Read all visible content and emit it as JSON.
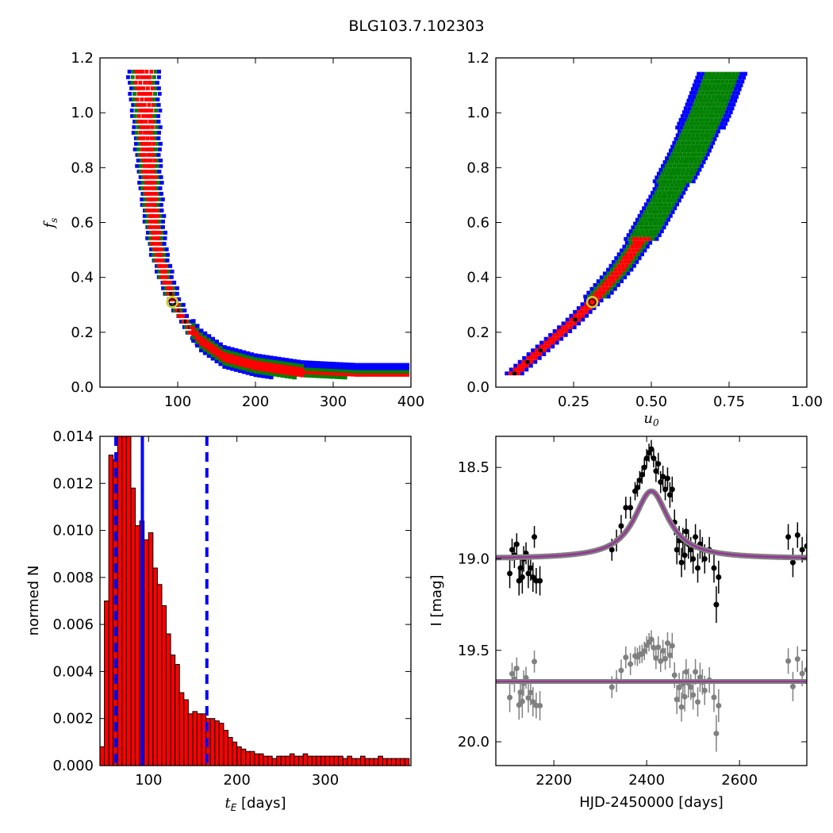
{
  "figure": {
    "title": "BLG103.7.102303"
  },
  "chart_data": [
    {
      "id": "fs_vs_tE",
      "type": "heatmap",
      "xlabel": "",
      "ylabel": "f_s",
      "xlim": [
        0,
        400
      ],
      "ylim": [
        0,
        1.2
      ],
      "xticks": [
        "100",
        "200",
        "300",
        "400"
      ],
      "yticks": [
        "0.0",
        "0.2",
        "0.4",
        "0.6",
        "0.8",
        "1.0",
        "1.2"
      ],
      "colors": {
        "outer": "#0000ff",
        "middle": "#008000",
        "inner": "#ff0000",
        "peak": "#000000",
        "best_fit": "#cccc33"
      },
      "ridge": [
        [
          56,
          1.15
        ],
        [
          62,
          0.85
        ],
        [
          68,
          0.65
        ],
        [
          75,
          0.5
        ],
        [
          85,
          0.4
        ],
        [
          95,
          0.32
        ],
        [
          110,
          0.24
        ],
        [
          130,
          0.17
        ],
        [
          160,
          0.11
        ],
        [
          200,
          0.08
        ],
        [
          260,
          0.055
        ],
        [
          330,
          0.045
        ],
        [
          400,
          0.045
        ]
      ],
      "best_fit": [
        93,
        0.31
      ]
    },
    {
      "id": "fs_vs_u0",
      "type": "heatmap",
      "xlabel": "u_0",
      "ylabel": "",
      "xlim": [
        0,
        1.0
      ],
      "ylim": [
        0,
        1.2
      ],
      "xticks": [
        "0.25",
        "0.50",
        "0.75",
        "1.00"
      ],
      "yticks": [
        "0.0",
        "0.2",
        "0.4",
        "0.6",
        "0.8",
        "1.0",
        "1.2"
      ],
      "ridge": [
        [
          0.06,
          0.05
        ],
        [
          0.15,
          0.14
        ],
        [
          0.25,
          0.24
        ],
        [
          0.31,
          0.31
        ],
        [
          0.4,
          0.43
        ],
        [
          0.48,
          0.56
        ],
        [
          0.55,
          0.7
        ],
        [
          0.62,
          0.85
        ],
        [
          0.68,
          1.0
        ],
        [
          0.73,
          1.15
        ]
      ],
      "best_fit": [
        0.31,
        0.31
      ]
    },
    {
      "id": "tE_histogram",
      "type": "bar",
      "xlabel": "t_E [days]",
      "ylabel": "normed N",
      "xlim": [
        45,
        397
      ],
      "ylim": [
        0,
        0.014
      ],
      "xticks": [
        "100",
        "200",
        "300"
      ],
      "yticks": [
        "0.000",
        "0.002",
        "0.004",
        "0.006",
        "0.008",
        "0.010",
        "0.012",
        "0.014"
      ],
      "bar_color": "#ff0000",
      "bin_width": 5,
      "bin_start": 45,
      "values": [
        0.0008,
        0.007,
        0.0132,
        0.013,
        0.014,
        0.014,
        0.014,
        0.0118,
        0.0102,
        0.0104,
        0.0096,
        0.0099,
        0.0084,
        0.0077,
        0.0068,
        0.0056,
        0.0047,
        0.0043,
        0.0031,
        0.0028,
        0.0022,
        0.0023,
        0.0022,
        0.0022,
        0.002,
        0.002,
        0.0019,
        0.0018,
        0.0015,
        0.0012,
        0.001,
        0.0008,
        0.0007,
        0.0006,
        0.0006,
        0.0005,
        0.0005,
        0.0004,
        0.0004,
        0.0003,
        0.0004,
        0.0004,
        0.0004,
        0.0005,
        0.0004,
        0.0004,
        0.0005,
        0.0004,
        0.0004,
        0.0004,
        0.0004,
        0.0004,
        0.0004,
        0.0004,
        0.0004,
        0.0003,
        0.0004,
        0.0003,
        0.0003,
        0.0004,
        0.0003,
        0.0003,
        0.0003,
        0.0004,
        0.0003,
        0.0003,
        0.0003,
        0.0003,
        0.0003,
        0.0003
      ],
      "median_line": 93,
      "interval_lines": [
        63,
        166
      ],
      "line_color": "#0000ff"
    },
    {
      "id": "lightcurve",
      "type": "scatter",
      "xlabel": "HJD-2450000 [days]",
      "ylabel": "I [mag]",
      "xlim": [
        2075,
        2745
      ],
      "ylim": [
        20.13,
        18.33
      ],
      "y_inverted": true,
      "xticks": [
        "2200",
        "2400",
        "2600"
      ],
      "yticks": [
        "18.5",
        "19.0",
        "19.5",
        "20.0"
      ],
      "model": {
        "t0": 2410,
        "baseline": 19.0,
        "peak": 18.63,
        "width": 45,
        "color": "#993399",
        "band_color": "#808080"
      },
      "residual_offset": 19.67,
      "points": [
        [
          2105,
          19.08,
          0.08
        ],
        [
          2110,
          18.95,
          0.06
        ],
        [
          2115,
          18.98,
          0.07
        ],
        [
          2120,
          18.92,
          0.06
        ],
        [
          2125,
          19.12,
          0.08
        ],
        [
          2128,
          19.05,
          0.07
        ],
        [
          2132,
          19.1,
          0.09
        ],
        [
          2135,
          19.0,
          0.07
        ],
        [
          2140,
          18.97,
          0.06
        ],
        [
          2145,
          19.08,
          0.08
        ],
        [
          2150,
          19.05,
          0.07
        ],
        [
          2155,
          19.1,
          0.08
        ],
        [
          2158,
          18.88,
          0.06
        ],
        [
          2162,
          19.12,
          0.07
        ],
        [
          2170,
          19.12,
          0.08
        ],
        [
          2325,
          18.95,
          0.06
        ],
        [
          2335,
          18.9,
          0.06
        ],
        [
          2345,
          18.82,
          0.06
        ],
        [
          2355,
          18.72,
          0.06
        ],
        [
          2365,
          18.72,
          0.06
        ],
        [
          2375,
          18.63,
          0.05
        ],
        [
          2380,
          18.61,
          0.05
        ],
        [
          2385,
          18.57,
          0.05
        ],
        [
          2390,
          18.54,
          0.05
        ],
        [
          2395,
          18.5,
          0.05
        ],
        [
          2400,
          18.45,
          0.05
        ],
        [
          2405,
          18.42,
          0.05
        ],
        [
          2410,
          18.4,
          0.05
        ],
        [
          2415,
          18.45,
          0.05
        ],
        [
          2420,
          18.52,
          0.06
        ],
        [
          2425,
          18.48,
          0.06
        ],
        [
          2430,
          18.58,
          0.06
        ],
        [
          2435,
          18.55,
          0.06
        ],
        [
          2440,
          18.62,
          0.06
        ],
        [
          2445,
          18.56,
          0.06
        ],
        [
          2450,
          18.65,
          0.07
        ],
        [
          2455,
          18.62,
          0.07
        ],
        [
          2460,
          18.8,
          0.07
        ],
        [
          2465,
          18.95,
          0.08
        ],
        [
          2470,
          18.9,
          0.08
        ],
        [
          2475,
          19.02,
          0.08
        ],
        [
          2478,
          18.9,
          0.07
        ],
        [
          2482,
          18.98,
          0.08
        ],
        [
          2485,
          18.85,
          0.07
        ],
        [
          2490,
          18.92,
          0.08
        ],
        [
          2495,
          18.95,
          0.07
        ],
        [
          2500,
          19.0,
          0.08
        ],
        [
          2505,
          18.88,
          0.07
        ],
        [
          2510,
          19.05,
          0.08
        ],
        [
          2515,
          18.92,
          0.08
        ],
        [
          2520,
          18.95,
          0.07
        ],
        [
          2525,
          19.0,
          0.08
        ],
        [
          2535,
          18.95,
          0.07
        ],
        [
          2545,
          19.05,
          0.08
        ],
        [
          2550,
          19.25,
          0.1
        ],
        [
          2555,
          19.1,
          0.09
        ],
        [
          2705,
          18.88,
          0.07
        ],
        [
          2715,
          19.02,
          0.08
        ],
        [
          2725,
          18.87,
          0.07
        ],
        [
          2735,
          18.95,
          0.07
        ],
        [
          2745,
          18.93,
          0.07
        ]
      ]
    }
  ]
}
